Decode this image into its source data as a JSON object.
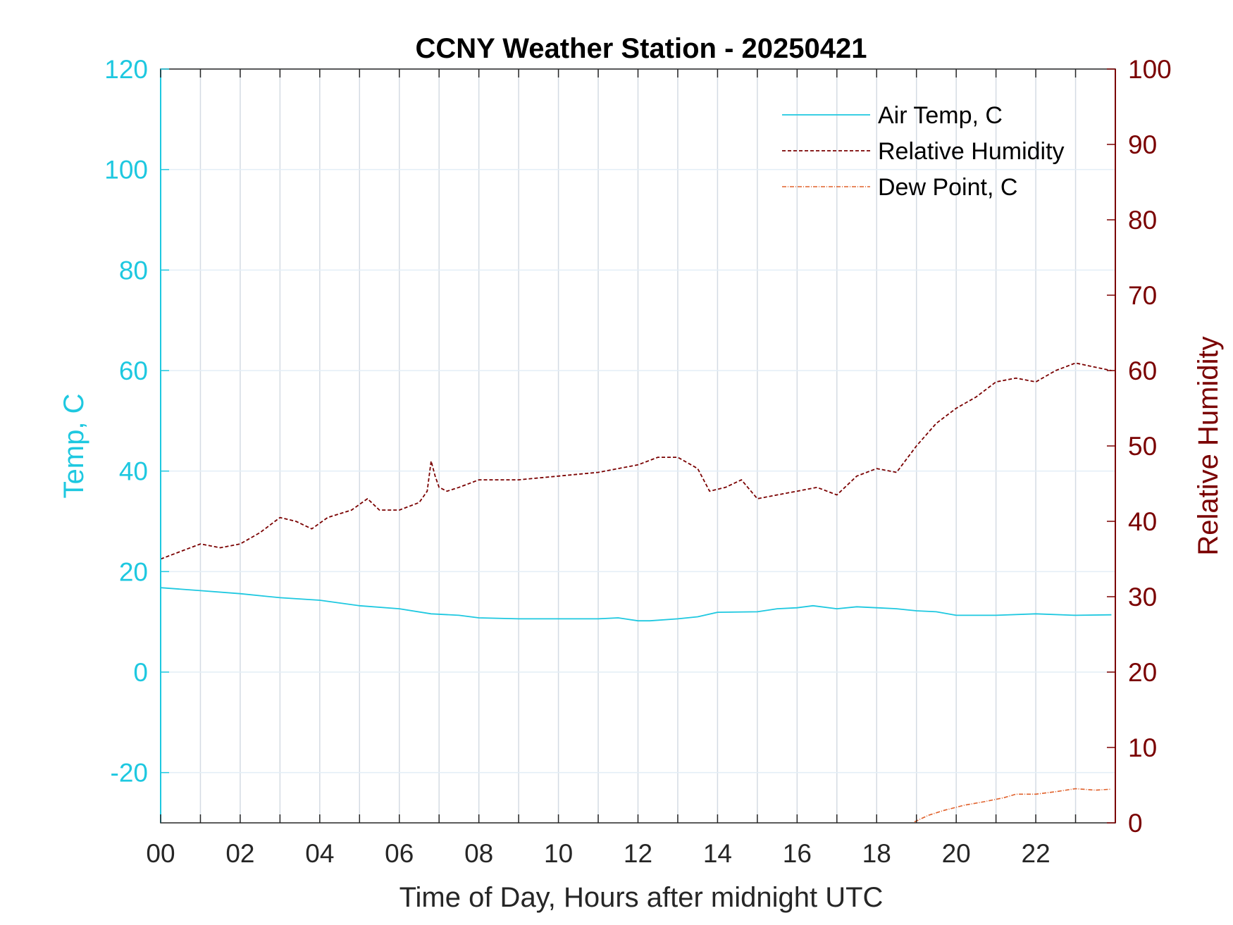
{
  "colors": {
    "air_temp": "#1ec8e0",
    "humidity": "#7a0000",
    "dew_point": "#e0602a",
    "grid": "#d4dbe3",
    "axis_dark": "#262626"
  },
  "chart_data": {
    "type": "line",
    "title": "CCNY Weather Station - 20250421",
    "xlabel": "Time of Day, Hours after midnight UTC",
    "ylabel_left": "Temp, C",
    "ylabel_right": "Relative Humidity",
    "xlim": [
      0,
      24
    ],
    "ylim_left": [
      -30,
      120
    ],
    "ylim_right": [
      0,
      100
    ],
    "x_ticks": [
      0,
      2,
      4,
      6,
      8,
      10,
      12,
      14,
      16,
      18,
      20,
      22
    ],
    "x_tick_labels": [
      "00",
      "02",
      "04",
      "06",
      "08",
      "10",
      "12",
      "14",
      "16",
      "18",
      "20",
      "22"
    ],
    "y_left_ticks": [
      -20,
      0,
      20,
      40,
      60,
      80,
      100,
      120
    ],
    "y_left_tick_labels": [
      "-20",
      "0",
      "20",
      "40",
      "60",
      "80",
      "100",
      "120"
    ],
    "y_right_ticks": [
      0,
      10,
      20,
      30,
      40,
      50,
      60,
      70,
      80,
      90,
      100
    ],
    "y_right_tick_labels": [
      "0",
      "10",
      "20",
      "30",
      "40",
      "50",
      "60",
      "70",
      "80",
      "90",
      "100"
    ],
    "grid": true,
    "legend_position": "top-right",
    "series": [
      {
        "name": "Air Temp, C",
        "axis": "left",
        "style": "solid",
        "x": [
          0,
          1,
          2,
          3,
          4,
          5,
          6,
          6.8,
          7.5,
          8,
          9,
          10,
          11,
          11.5,
          12,
          12.3,
          13,
          13.5,
          14,
          15,
          15.5,
          16,
          16.4,
          17,
          17.5,
          18,
          18.5,
          19,
          19.5,
          20,
          21,
          22,
          23,
          23.9
        ],
        "values": [
          16.8,
          16.2,
          15.6,
          14.8,
          14.3,
          13.2,
          12.6,
          11.6,
          11.3,
          10.8,
          10.6,
          10.6,
          10.6,
          10.8,
          10.2,
          10.2,
          10.6,
          11.0,
          11.9,
          12.0,
          12.6,
          12.8,
          13.2,
          12.6,
          13.0,
          12.8,
          12.6,
          12.2,
          12.0,
          11.3,
          11.3,
          11.6,
          11.3,
          11.4
        ]
      },
      {
        "name": "Relative Humidity",
        "axis": "right",
        "style": "dashed",
        "x": [
          0,
          0.5,
          1.0,
          1.5,
          2.0,
          2.5,
          3.0,
          3.4,
          3.8,
          4.2,
          4.8,
          5.2,
          5.5,
          6.0,
          6.5,
          6.7,
          6.8,
          6.9,
          7.0,
          7.2,
          7.5,
          8.0,
          9.0,
          10.0,
          11.0,
          12.0,
          12.5,
          13.0,
          13.5,
          13.8,
          14.2,
          14.6,
          15.0,
          15.5,
          16.0,
          16.5,
          17.0,
          17.5,
          18.0,
          18.5,
          19.0,
          19.5,
          20.0,
          20.5,
          21.0,
          21.5,
          22.0,
          22.5,
          23.0,
          23.9
        ],
        "values": [
          35.0,
          36.0,
          37.0,
          36.5,
          37.0,
          38.5,
          40.5,
          40.0,
          39.0,
          40.5,
          41.5,
          43.0,
          41.5,
          41.5,
          42.5,
          44.0,
          48.0,
          46.0,
          44.5,
          44.0,
          44.5,
          45.5,
          45.5,
          46.0,
          46.5,
          47.5,
          48.5,
          48.5,
          47.0,
          44.0,
          44.5,
          45.5,
          43.0,
          43.5,
          44.0,
          44.5,
          43.5,
          46.0,
          47.0,
          46.5,
          50.0,
          53.0,
          55.0,
          56.5,
          58.5,
          59.0,
          58.5,
          60.0,
          61.0,
          60.0
        ]
      },
      {
        "name": "Dew Point, C",
        "axis": "left",
        "style": "dash-dot",
        "x": [
          18.95,
          19.3,
          19.7,
          20.2,
          20.7,
          21.2,
          21.5,
          22.0,
          22.5,
          23.0,
          23.5,
          23.9
        ],
        "values": [
          -29.8,
          -28.5,
          -27.5,
          -26.5,
          -25.8,
          -25.0,
          -24.3,
          -24.3,
          -23.8,
          -23.2,
          -23.5,
          -23.3
        ]
      }
    ]
  }
}
